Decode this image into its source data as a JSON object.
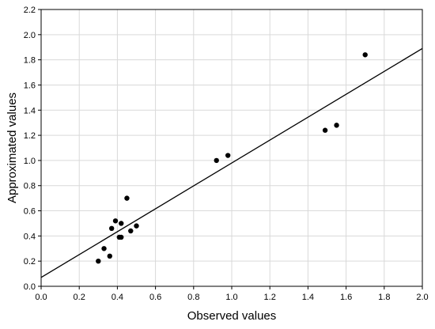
{
  "chart_data": {
    "type": "scatter",
    "title": "",
    "xlabel": "Observed values",
    "ylabel": "Approximated values",
    "xlim": [
      0.0,
      2.0
    ],
    "ylim": [
      0.0,
      2.2
    ],
    "x_ticks": [
      "0.0",
      "0.2",
      "0.4",
      "0.6",
      "0.8",
      "1.0",
      "1.2",
      "1.4",
      "1.6",
      "1.8",
      "2.0"
    ],
    "y_ticks": [
      "0.0",
      "0.2",
      "0.4",
      "0.6",
      "0.8",
      "1.0",
      "1.2",
      "1.4",
      "1.6",
      "1.8",
      "2.0",
      "2.2"
    ],
    "grid": true,
    "legend": "none",
    "series": [
      {
        "type": "scatter",
        "marker_color": "#000000",
        "points": [
          {
            "x": 0.3,
            "y": 0.2
          },
          {
            "x": 0.33,
            "y": 0.3
          },
          {
            "x": 0.36,
            "y": 0.24
          },
          {
            "x": 0.37,
            "y": 0.46
          },
          {
            "x": 0.39,
            "y": 0.52
          },
          {
            "x": 0.41,
            "y": 0.39
          },
          {
            "x": 0.42,
            "y": 0.5
          },
          {
            "x": 0.42,
            "y": 0.39
          },
          {
            "x": 0.45,
            "y": 0.7
          },
          {
            "x": 0.47,
            "y": 0.44
          },
          {
            "x": 0.5,
            "y": 0.48
          },
          {
            "x": 0.92,
            "y": 1.0
          },
          {
            "x": 0.98,
            "y": 1.04
          },
          {
            "x": 1.49,
            "y": 1.24
          },
          {
            "x": 1.55,
            "y": 1.28
          },
          {
            "x": 1.7,
            "y": 1.84
          }
        ]
      },
      {
        "type": "line",
        "line_color": "#000000",
        "points": [
          {
            "x": 0.0,
            "y": 0.07
          },
          {
            "x": 2.0,
            "y": 1.89
          }
        ]
      }
    ]
  }
}
